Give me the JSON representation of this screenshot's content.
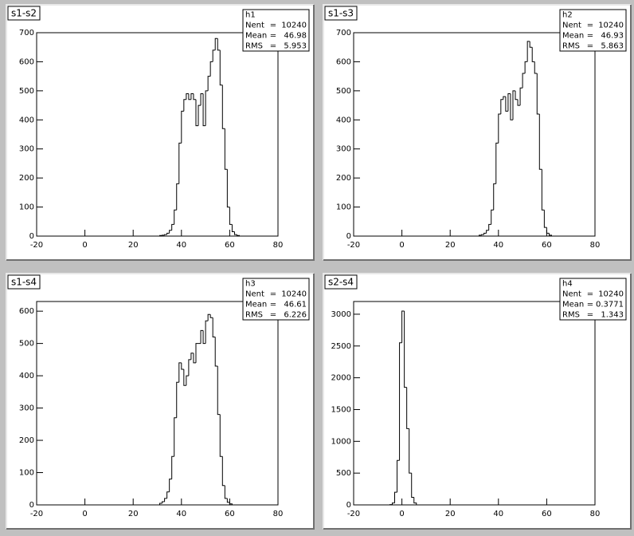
{
  "chart_data": [
    {
      "type": "histogram",
      "title": "s1-s2",
      "stats": {
        "name": "h1",
        "rows": [
          {
            "label": "Nent",
            "value": 10240
          },
          {
            "label": "Mean",
            "value": 46.98
          },
          {
            "label": "RMS",
            "value": 5.953
          }
        ]
      },
      "bins": [
        31,
        32,
        33,
        34,
        35,
        36,
        37,
        38,
        39,
        40,
        41,
        42,
        43,
        44,
        45,
        46,
        47,
        48,
        49,
        50,
        51,
        52,
        53,
        54,
        55,
        56,
        57,
        58,
        59,
        60,
        61,
        62,
        63,
        64
      ],
      "values": [
        2,
        3,
        5,
        10,
        20,
        40,
        90,
        180,
        320,
        430,
        470,
        490,
        470,
        490,
        470,
        380,
        450,
        490,
        380,
        500,
        550,
        600,
        640,
        680,
        640,
        520,
        370,
        230,
        100,
        40,
        15,
        5,
        2
      ],
      "xlim": [
        -20,
        80
      ],
      "xticks": [
        -20,
        0,
        20,
        40,
        60,
        80
      ],
      "ylim": [
        0,
        700
      ],
      "yticks": [
        0,
        100,
        200,
        300,
        400,
        500,
        600,
        700
      ]
    },
    {
      "type": "histogram",
      "title": "s1-s3",
      "stats": {
        "name": "h2",
        "rows": [
          {
            "label": "Nent",
            "value": 10240
          },
          {
            "label": "Mean",
            "value": 46.93
          },
          {
            "label": "RMS",
            "value": 5.863
          }
        ]
      },
      "bins": [
        32,
        33,
        34,
        35,
        36,
        37,
        38,
        39,
        40,
        41,
        42,
        43,
        44,
        45,
        46,
        47,
        48,
        49,
        50,
        51,
        52,
        53,
        54,
        55,
        56,
        57,
        58,
        59,
        60,
        61,
        62
      ],
      "values": [
        3,
        5,
        10,
        20,
        40,
        90,
        180,
        320,
        420,
        470,
        480,
        430,
        490,
        400,
        500,
        470,
        450,
        510,
        560,
        600,
        670,
        650,
        600,
        560,
        420,
        230,
        90,
        30,
        10,
        3
      ],
      "xlim": [
        -20,
        80
      ],
      "xticks": [
        -20,
        0,
        20,
        40,
        60,
        80
      ],
      "ylim": [
        0,
        700
      ],
      "yticks": [
        0,
        100,
        200,
        300,
        400,
        500,
        600,
        700
      ]
    },
    {
      "type": "histogram",
      "title": "s1-s4",
      "stats": {
        "name": "h3",
        "rows": [
          {
            "label": "Nent",
            "value": 10240
          },
          {
            "label": "Mean",
            "value": 46.61
          },
          {
            "label": "RMS",
            "value": 6.226
          }
        ]
      },
      "bins": [
        31,
        32,
        33,
        34,
        35,
        36,
        37,
        38,
        39,
        40,
        41,
        42,
        43,
        44,
        45,
        46,
        47,
        48,
        49,
        50,
        51,
        52,
        53,
        54,
        55,
        56,
        57,
        58,
        59,
        60,
        61
      ],
      "values": [
        5,
        10,
        20,
        40,
        80,
        150,
        270,
        380,
        440,
        420,
        370,
        400,
        450,
        470,
        440,
        500,
        500,
        540,
        500,
        570,
        590,
        580,
        520,
        430,
        280,
        150,
        60,
        20,
        8,
        3
      ],
      "xlim": [
        -20,
        80
      ],
      "xticks": [
        -20,
        0,
        20,
        40,
        60,
        80
      ],
      "ylim": [
        0,
        630
      ],
      "yticks": [
        0,
        100,
        200,
        300,
        400,
        500,
        600
      ]
    },
    {
      "type": "histogram",
      "title": "s2-s4",
      "stats": {
        "name": "h4",
        "rows": [
          {
            "label": "Nent",
            "value": 10240
          },
          {
            "label": "Mean",
            "value": 0.3771
          },
          {
            "label": "RMS",
            "value": 1.343
          }
        ]
      },
      "bins": [
        -5,
        -4,
        -3,
        -2,
        -1,
        0,
        1,
        2,
        3,
        4,
        5,
        6
      ],
      "values": [
        5,
        30,
        200,
        700,
        2550,
        3050,
        1850,
        1200,
        500,
        120,
        30
      ],
      "xlim": [
        -20,
        80
      ],
      "xticks": [
        -20,
        0,
        20,
        40,
        60,
        80
      ],
      "ylim": [
        0,
        3200
      ],
      "yticks": [
        0,
        500,
        1000,
        1500,
        2000,
        2500,
        3000
      ]
    }
  ]
}
